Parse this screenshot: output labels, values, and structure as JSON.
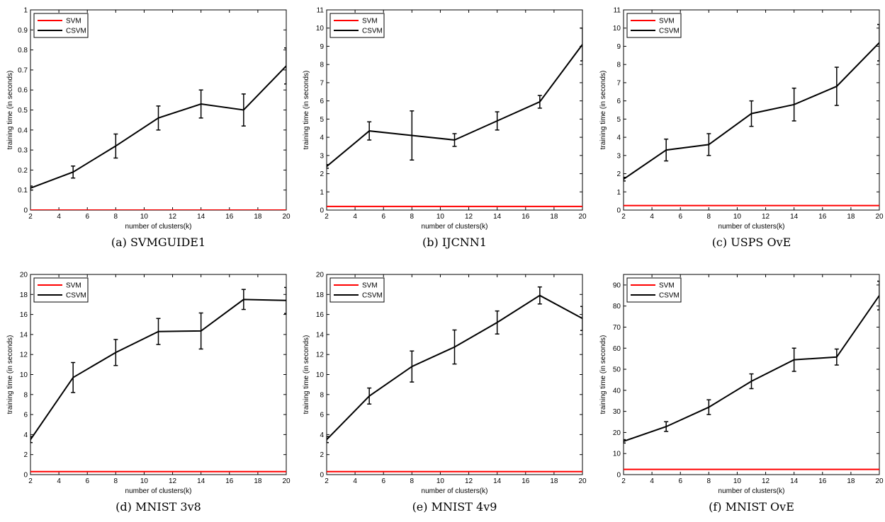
{
  "chart_data": [
    {
      "type": "line",
      "caption": "(a) SVMGUIDE1",
      "xlabel": "number of clusters(k)",
      "ylabel": "training time (in seconds)",
      "xlim": [
        2,
        20
      ],
      "ylim": [
        0,
        1
      ],
      "xticks": [
        2,
        4,
        6,
        8,
        10,
        12,
        14,
        16,
        18,
        20
      ],
      "yticks": [
        0,
        0.1,
        0.2,
        0.3,
        0.4,
        0.5,
        0.6,
        0.7,
        0.8,
        0.9,
        1
      ],
      "legend": {
        "position": "top-left",
        "entries": [
          "SVM",
          "CSVM"
        ]
      },
      "series": [
        {
          "name": "SVM",
          "color": "#ff0000",
          "x": [
            2,
            20
          ],
          "y": [
            0.0,
            0.0
          ]
        },
        {
          "name": "CSVM",
          "color": "#000000",
          "x": [
            2,
            5,
            8,
            11,
            14,
            17,
            20
          ],
          "y": [
            0.11,
            0.19,
            0.32,
            0.46,
            0.53,
            0.5,
            0.72
          ],
          "err": [
            0.01,
            0.03,
            0.06,
            0.06,
            0.07,
            0.08,
            0.09
          ]
        }
      ]
    },
    {
      "type": "line",
      "caption": "(b) IJCNN1",
      "xlabel": "number of clusters(k)",
      "ylabel": "training time (in seconds)",
      "xlim": [
        2,
        20
      ],
      "ylim": [
        0,
        11
      ],
      "xticks": [
        2,
        4,
        6,
        8,
        10,
        12,
        14,
        16,
        18,
        20
      ],
      "yticks": [
        0,
        1,
        2,
        3,
        4,
        5,
        6,
        7,
        8,
        9,
        10,
        11
      ],
      "legend": {
        "position": "top-left",
        "entries": [
          "SVM",
          "CSVM"
        ]
      },
      "series": [
        {
          "name": "SVM",
          "color": "#ff0000",
          "x": [
            2,
            20
          ],
          "y": [
            0.2,
            0.2
          ]
        },
        {
          "name": "CSVM",
          "color": "#000000",
          "x": [
            2,
            5,
            8,
            11,
            14,
            17,
            20
          ],
          "y": [
            2.4,
            4.35,
            4.1,
            3.85,
            4.9,
            5.95,
            9.1
          ],
          "err": [
            0.1,
            0.5,
            1.35,
            0.35,
            0.5,
            0.35,
            0.9
          ]
        }
      ]
    },
    {
      "type": "line",
      "caption": "(c) USPS OvE",
      "xlabel": "number of clusters(k)",
      "ylabel": "training time (in seconds)",
      "xlim": [
        2,
        20
      ],
      "ylim": [
        0,
        11
      ],
      "xticks": [
        2,
        4,
        6,
        8,
        10,
        12,
        14,
        16,
        18,
        20
      ],
      "yticks": [
        0,
        1,
        2,
        3,
        4,
        5,
        6,
        7,
        8,
        9,
        10,
        11
      ],
      "legend": {
        "position": "top-left",
        "entries": [
          "SVM",
          "CSVM"
        ]
      },
      "series": [
        {
          "name": "SVM",
          "color": "#ff0000",
          "x": [
            2,
            20
          ],
          "y": [
            0.25,
            0.25
          ]
        },
        {
          "name": "CSVM",
          "color": "#000000",
          "x": [
            2,
            5,
            8,
            11,
            14,
            17,
            20
          ],
          "y": [
            1.7,
            3.3,
            3.6,
            5.3,
            5.8,
            6.8,
            9.2
          ],
          "err": [
            0.1,
            0.6,
            0.6,
            0.7,
            0.9,
            1.05,
            1.0
          ]
        }
      ]
    },
    {
      "type": "line",
      "caption": "(d) MNIST 3v8",
      "xlabel": "number of clusters(k)",
      "ylabel": "training time (in seconds)",
      "xlim": [
        2,
        20
      ],
      "ylim": [
        0,
        20
      ],
      "xticks": [
        2,
        4,
        6,
        8,
        10,
        12,
        14,
        16,
        18,
        20
      ],
      "yticks": [
        0,
        2,
        4,
        6,
        8,
        10,
        12,
        14,
        16,
        18,
        20
      ],
      "legend": {
        "position": "top-left",
        "entries": [
          "SVM",
          "CSVM"
        ]
      },
      "series": [
        {
          "name": "SVM",
          "color": "#ff0000",
          "x": [
            2,
            20
          ],
          "y": [
            0.3,
            0.3
          ]
        },
        {
          "name": "CSVM",
          "color": "#000000",
          "x": [
            2,
            5,
            8,
            11,
            14,
            17,
            20
          ],
          "y": [
            3.5,
            9.7,
            12.2,
            14.3,
            14.35,
            17.5,
            17.4
          ],
          "err": [
            0.3,
            1.5,
            1.3,
            1.3,
            1.8,
            1.0,
            1.3
          ]
        }
      ]
    },
    {
      "type": "line",
      "caption": "(e) MNIST 4v9",
      "xlabel": "number of clusters(k)",
      "ylabel": "training time (in seconds)",
      "xlim": [
        2,
        20
      ],
      "ylim": [
        0,
        20
      ],
      "xticks": [
        2,
        4,
        6,
        8,
        10,
        12,
        14,
        16,
        18,
        20
      ],
      "yticks": [
        0,
        2,
        4,
        6,
        8,
        10,
        12,
        14,
        16,
        18,
        20
      ],
      "legend": {
        "position": "top-left",
        "entries": [
          "SVM",
          "CSVM"
        ]
      },
      "series": [
        {
          "name": "SVM",
          "color": "#ff0000",
          "x": [
            2,
            20
          ],
          "y": [
            0.3,
            0.3
          ]
        },
        {
          "name": "CSVM",
          "color": "#000000",
          "x": [
            2,
            5,
            8,
            11,
            14,
            17,
            20
          ],
          "y": [
            3.5,
            7.85,
            10.8,
            12.75,
            15.2,
            17.9,
            15.6
          ],
          "err": [
            0.3,
            0.8,
            1.55,
            1.7,
            1.15,
            0.85,
            1.2
          ]
        }
      ]
    },
    {
      "type": "line",
      "caption": "(f) MNIST OvE",
      "xlabel": "number of clusters(k)",
      "ylabel": "training time (in seconds)",
      "xlim": [
        2,
        20
      ],
      "ylim": [
        0,
        95
      ],
      "xticks": [
        2,
        4,
        6,
        8,
        10,
        12,
        14,
        16,
        18,
        20
      ],
      "yticks": [
        0,
        10,
        20,
        30,
        40,
        50,
        60,
        70,
        80,
        90
      ],
      "legend": {
        "position": "top-left",
        "entries": [
          "SVM",
          "CSVM"
        ]
      },
      "series": [
        {
          "name": "SVM",
          "color": "#ff0000",
          "x": [
            2,
            20
          ],
          "y": [
            2.5,
            2.5
          ]
        },
        {
          "name": "CSVM",
          "color": "#000000",
          "x": [
            2,
            5,
            8,
            11,
            14,
            17,
            20
          ],
          "y": [
            15.8,
            22.8,
            32.0,
            44.3,
            54.5,
            55.8,
            85.0
          ],
          "err": [
            0.8,
            2.3,
            3.5,
            3.5,
            5.5,
            3.8,
            6.8
          ]
        }
      ]
    }
  ]
}
